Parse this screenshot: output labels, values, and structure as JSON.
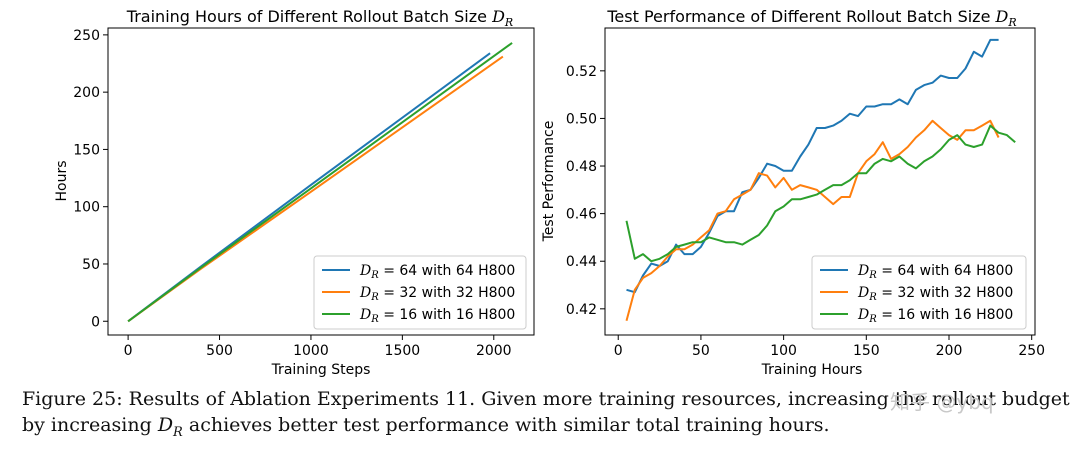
{
  "colors": {
    "blue": "#1f77b4",
    "orange": "#ff7f0e",
    "green": "#2ca02c"
  },
  "chart_data": [
    {
      "type": "line",
      "title": "Training Hours of Different Rollout Batch Size D_R",
      "xlabel": "Training Steps",
      "ylabel": "Hours",
      "xlim": [
        -110,
        2220
      ],
      "ylim": [
        -12,
        256
      ],
      "xticks": [
        "0",
        "500",
        "1000",
        "1500",
        "2000"
      ],
      "xtick_values": [
        0,
        500,
        1000,
        1500,
        2000
      ],
      "yticks": [
        "0",
        "50",
        "100",
        "150",
        "200",
        "250"
      ],
      "ytick_values": [
        0,
        50,
        100,
        150,
        200,
        250
      ],
      "legend_position": "bottom-right",
      "series": [
        {
          "name": "D_R = 64 with 64 H800",
          "color": "blue",
          "x": [
            0,
            400,
            1000,
            1980
          ],
          "y": [
            0,
            48,
            119,
            234
          ]
        },
        {
          "name": "D_R = 32 with 32 H800",
          "color": "orange",
          "x": [
            0,
            400,
            1000,
            2050
          ],
          "y": [
            0,
            46,
            113,
            231
          ]
        },
        {
          "name": "D_R = 16 with 16 H800",
          "color": "green",
          "x": [
            0,
            400,
            1000,
            2100
          ],
          "y": [
            0,
            47,
            116,
            243
          ]
        }
      ]
    },
    {
      "type": "line",
      "title": "Test Performance of Different Rollout Batch Size D_R",
      "xlabel": "Training Hours",
      "ylabel": "Test Performance",
      "xlim": [
        -8,
        252
      ],
      "ylim": [
        0.409,
        0.538
      ],
      "xticks": [
        "0",
        "50",
        "100",
        "150",
        "200",
        "250"
      ],
      "xtick_values": [
        0,
        50,
        100,
        150,
        200,
        250
      ],
      "yticks": [
        "0.42",
        "0.44",
        "0.46",
        "0.48",
        "0.50",
        "0.52"
      ],
      "ytick_values": [
        0.42,
        0.44,
        0.46,
        0.48,
        0.5,
        0.52
      ],
      "legend_position": "bottom-right",
      "series": [
        {
          "name": "D_R = 64 with 64 H800",
          "color": "blue",
          "x": [
            5,
            10,
            15,
            20,
            25,
            30,
            35,
            40,
            45,
            50,
            55,
            60,
            65,
            70,
            75,
            80,
            85,
            90,
            95,
            100,
            105,
            110,
            115,
            120,
            125,
            130,
            135,
            140,
            145,
            150,
            155,
            160,
            165,
            170,
            175,
            180,
            185,
            190,
            195,
            200,
            205,
            210,
            215,
            220,
            225,
            230
          ],
          "y": [
            0.428,
            0.427,
            0.434,
            0.439,
            0.438,
            0.44,
            0.447,
            0.443,
            0.443,
            0.446,
            0.452,
            0.459,
            0.461,
            0.461,
            0.469,
            0.47,
            0.475,
            0.481,
            0.48,
            0.478,
            0.478,
            0.484,
            0.489,
            0.496,
            0.496,
            0.497,
            0.499,
            0.502,
            0.501,
            0.505,
            0.505,
            0.506,
            0.506,
            0.508,
            0.506,
            0.512,
            0.514,
            0.515,
            0.518,
            0.517,
            0.517,
            0.521,
            0.528,
            0.526,
            0.533,
            0.533
          ]
        },
        {
          "name": "D_R = 32 with 32 H800",
          "color": "orange",
          "x": [
            5,
            10,
            15,
            20,
            25,
            30,
            35,
            40,
            45,
            50,
            55,
            60,
            65,
            70,
            75,
            80,
            85,
            90,
            95,
            100,
            105,
            110,
            115,
            120,
            125,
            130,
            135,
            140,
            145,
            150,
            155,
            160,
            165,
            170,
            175,
            180,
            185,
            190,
            195,
            200,
            205,
            210,
            215,
            220,
            225,
            230
          ],
          "y": [
            0.415,
            0.428,
            0.433,
            0.435,
            0.438,
            0.442,
            0.445,
            0.445,
            0.447,
            0.45,
            0.453,
            0.46,
            0.461,
            0.466,
            0.468,
            0.47,
            0.477,
            0.476,
            0.471,
            0.475,
            0.47,
            0.472,
            0.471,
            0.47,
            0.467,
            0.464,
            0.467,
            0.467,
            0.477,
            0.482,
            0.485,
            0.49,
            0.483,
            0.485,
            0.488,
            0.492,
            0.495,
            0.499,
            0.496,
            0.493,
            0.491,
            0.495,
            0.495,
            0.497,
            0.499,
            0.492
          ]
        },
        {
          "name": "D_R = 16 with 16 H800",
          "color": "green",
          "x": [
            5,
            10,
            15,
            20,
            25,
            30,
            35,
            40,
            45,
            50,
            55,
            60,
            65,
            70,
            75,
            80,
            85,
            90,
            95,
            100,
            105,
            110,
            115,
            120,
            125,
            130,
            135,
            140,
            145,
            150,
            155,
            160,
            165,
            170,
            175,
            180,
            185,
            190,
            195,
            200,
            205,
            210,
            215,
            220,
            225,
            230,
            235,
            240
          ],
          "y": [
            0.457,
            0.441,
            0.443,
            0.44,
            0.441,
            0.443,
            0.446,
            0.447,
            0.448,
            0.448,
            0.45,
            0.449,
            0.448,
            0.448,
            0.447,
            0.449,
            0.451,
            0.455,
            0.461,
            0.463,
            0.466,
            0.466,
            0.467,
            0.468,
            0.47,
            0.472,
            0.472,
            0.474,
            0.477,
            0.477,
            0.481,
            0.483,
            0.482,
            0.484,
            0.481,
            0.479,
            0.482,
            0.484,
            0.487,
            0.491,
            0.493,
            0.489,
            0.488,
            0.489,
            0.497,
            0.494,
            0.493,
            0.49
          ]
        }
      ]
    }
  ],
  "panel1": {
    "title": "Training Hours of Different Rollout Batch Size",
    "title_var": "D",
    "title_sub": "R",
    "xlabel": "Training Steps",
    "ylabel": "Hours",
    "legend": [
      {
        "var": "D",
        "sub": "R",
        "rest": " = 64 with 64 H800"
      },
      {
        "var": "D",
        "sub": "R",
        "rest": " = 32 with 32 H800"
      },
      {
        "var": "D",
        "sub": "R",
        "rest": " = 16 with 16 H800"
      }
    ]
  },
  "panel2": {
    "title": "Test Performance of Different Rollout Batch Size",
    "title_var": "D",
    "title_sub": "R",
    "xlabel": "Training Hours",
    "ylabel": "Test Performance",
    "legend": [
      {
        "var": "D",
        "sub": "R",
        "rest": " = 64 with 64 H800"
      },
      {
        "var": "D",
        "sub": "R",
        "rest": " = 32 with 32 H800"
      },
      {
        "var": "D",
        "sub": "R",
        "rest": " = 16 with 16 H800"
      }
    ]
  },
  "caption": {
    "text1": "Figure 25: Results of Ablation Experiments 11. Given more training resources, increasing the rollout budget",
    "text2_pre": "by increasing ",
    "var": "D",
    "sub": "R",
    "text2_post": " achieves better test performance with similar total training hours."
  },
  "watermark": "知乎 @ybq"
}
